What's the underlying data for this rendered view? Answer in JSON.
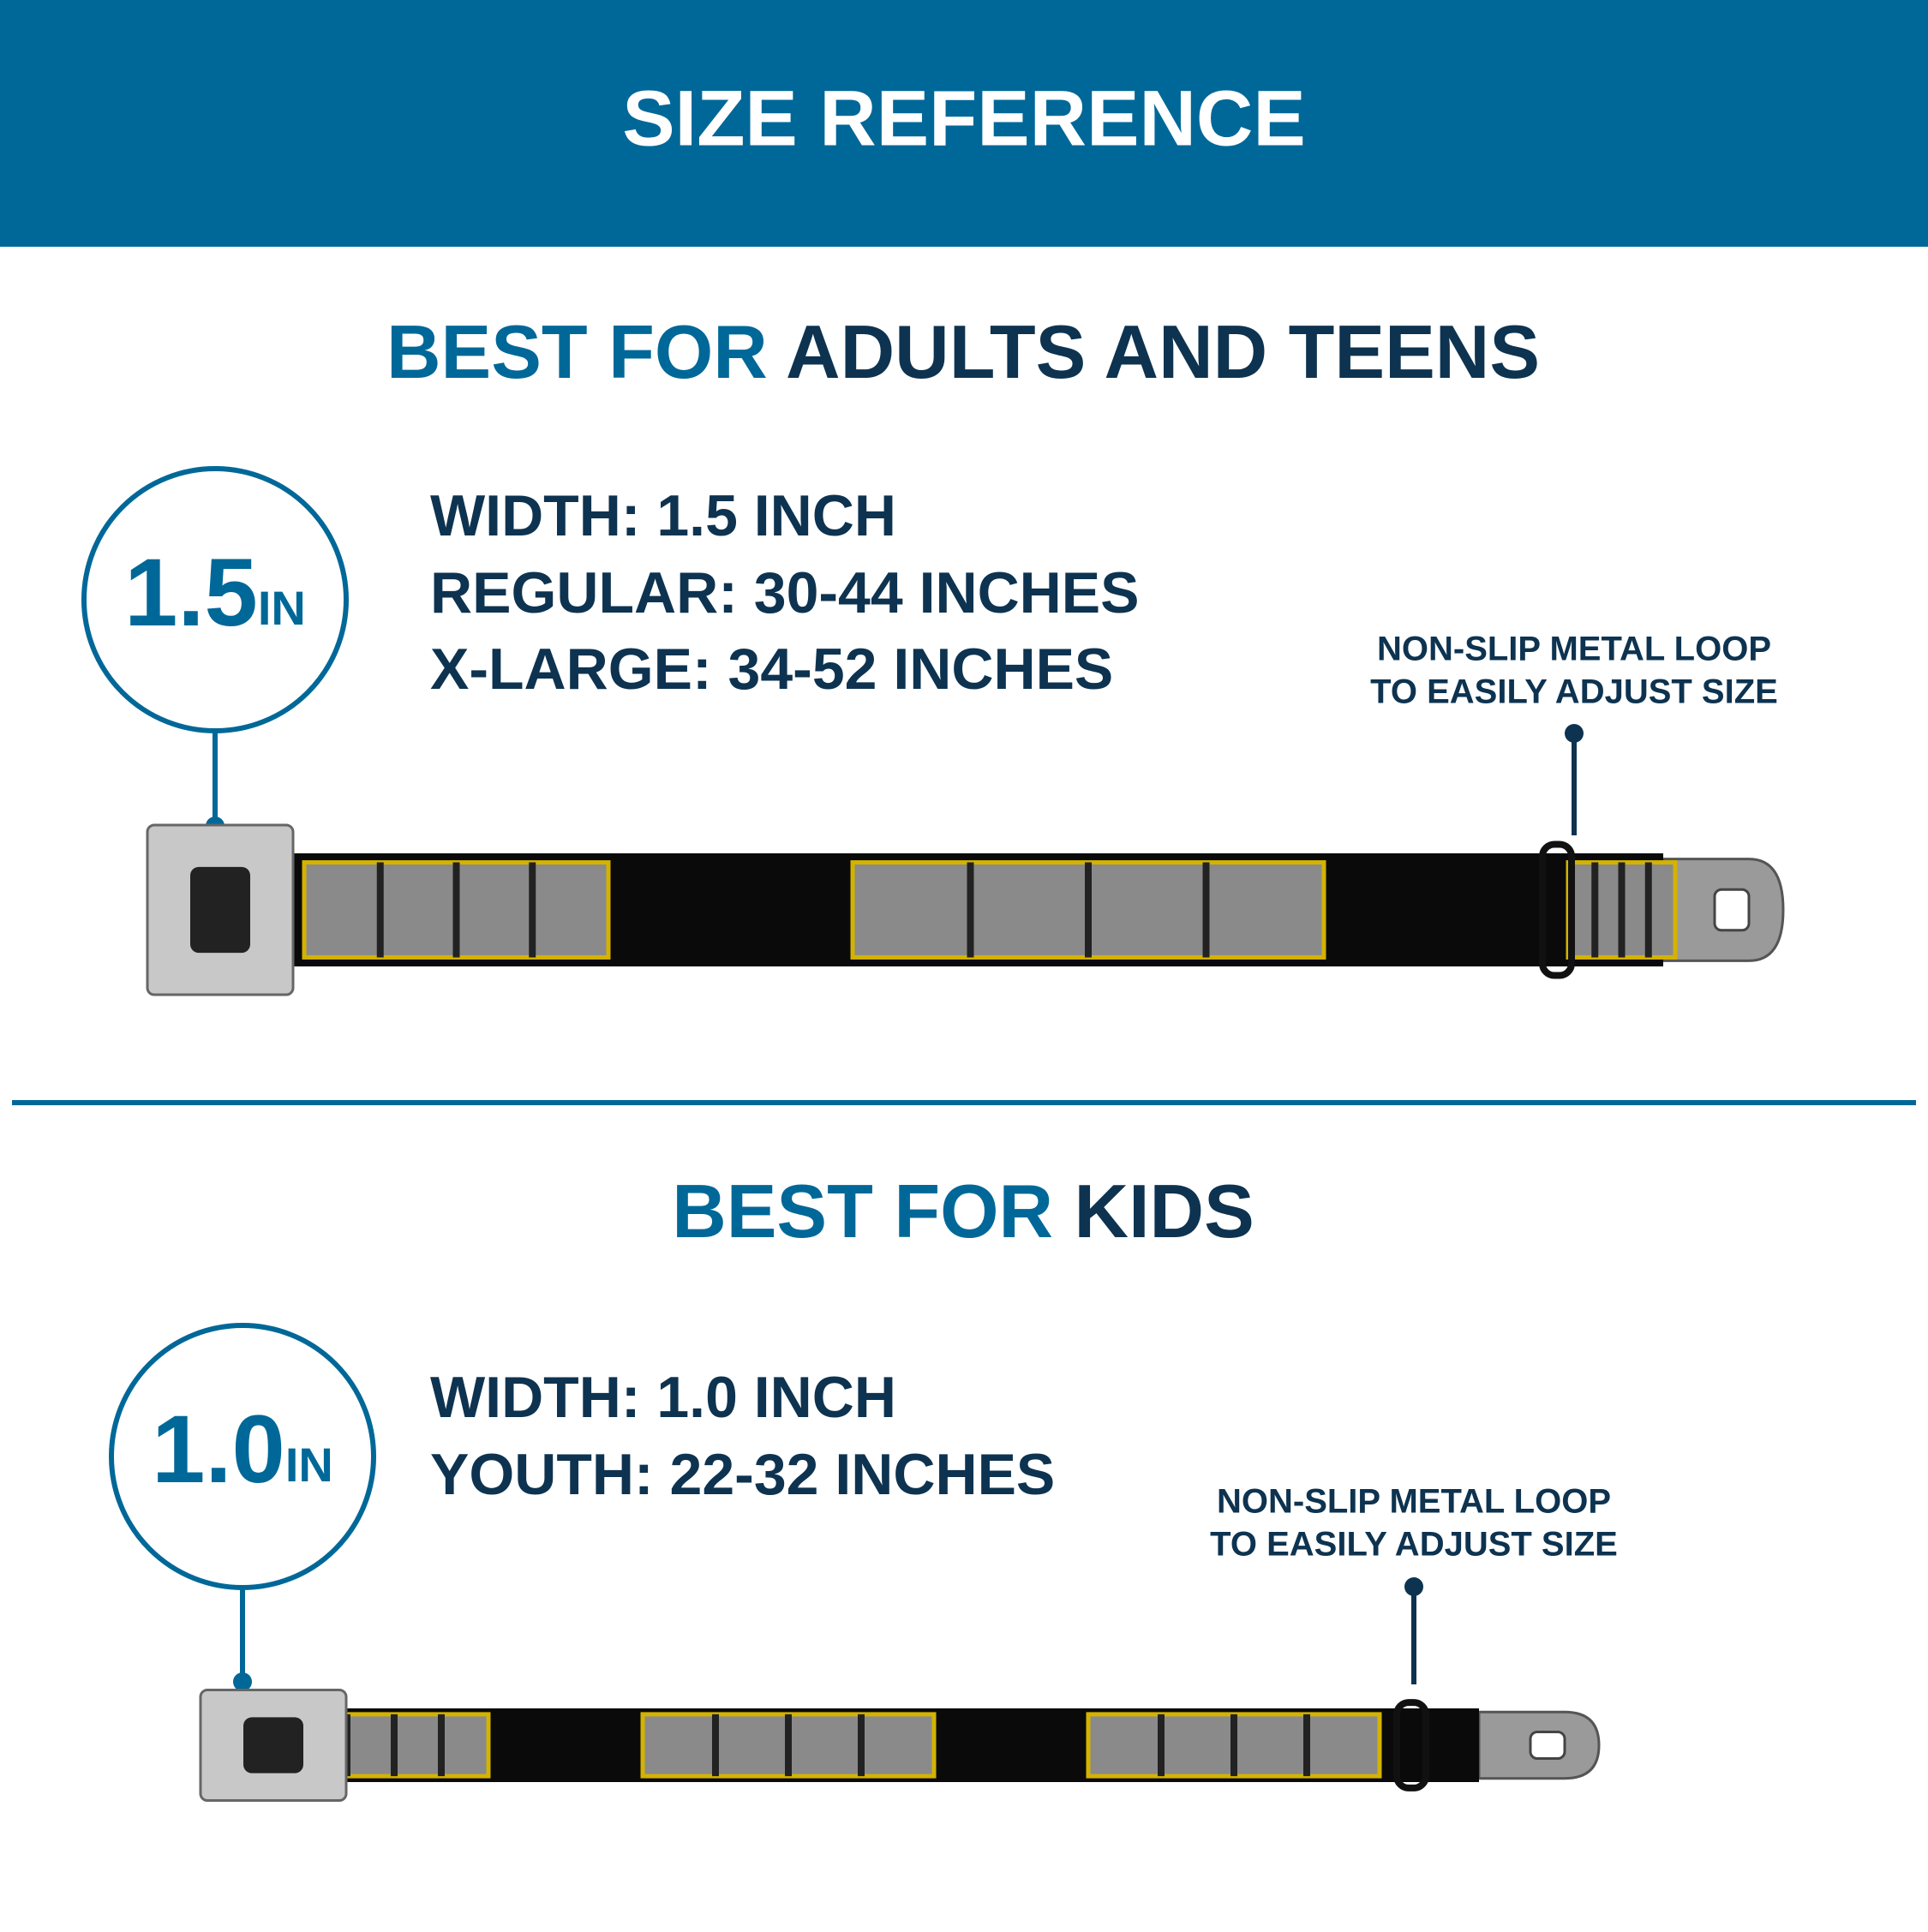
{
  "header": {
    "title": "SIZE REFERENCE"
  },
  "sections": [
    {
      "heading_accent": "BEST FOR",
      "heading_main": "ADULTS AND TEENS",
      "badge_number": "1.5",
      "badge_unit": "IN",
      "specs": [
        "WIDTH: 1.5 INCH",
        "REGULAR: 30-44 INCHES",
        "X-LARGE: 34-52 INCHES"
      ],
      "callout": [
        "NON-SLIP METAL LOOP",
        "TO EASILY ADJUST SIZE"
      ]
    },
    {
      "heading_accent": "BEST FOR",
      "heading_main": "KIDS",
      "badge_number": "1.0",
      "badge_unit": "IN",
      "specs": [
        "WIDTH: 1.0 INCH",
        "YOUTH: 22-32 INCHES"
      ],
      "callout": [
        "NON-SLIP METAL LOOP",
        "TO EASILY ADJUST SIZE"
      ]
    }
  ]
}
